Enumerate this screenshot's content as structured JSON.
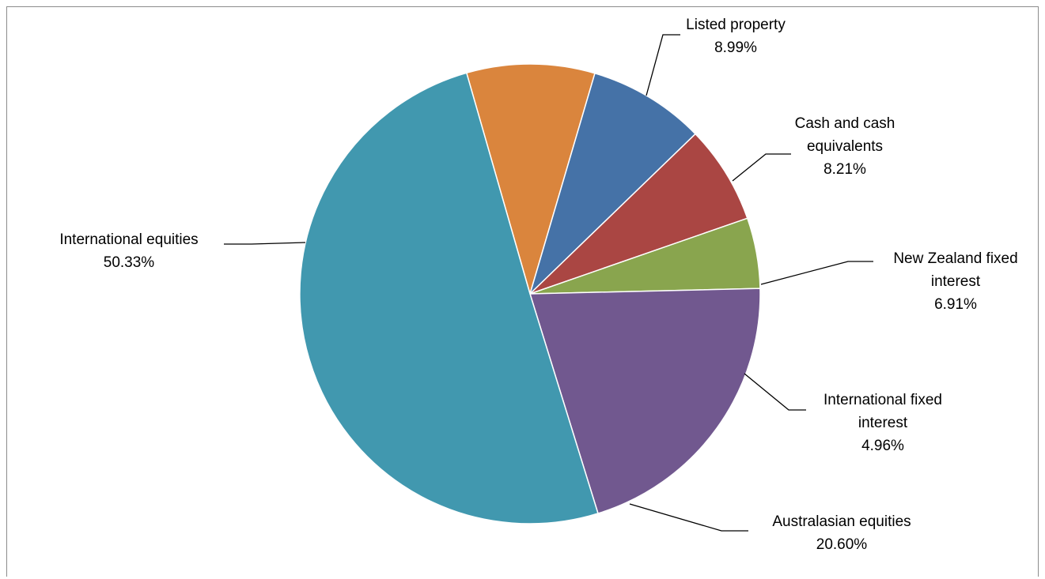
{
  "chart_data": {
    "type": "pie",
    "title": "",
    "start_angle_deg": 344,
    "direction": "clockwise",
    "legend": "none",
    "slices": [
      {
        "label": "Listed property",
        "value": 8.99,
        "display": "8.99%",
        "color": "#DA853D"
      },
      {
        "label": "Cash and cash equivalents",
        "value": 8.21,
        "display": "8.21%",
        "color": "#4572A7"
      },
      {
        "label": "New Zealand fixed interest",
        "value": 6.91,
        "display": "6.91%",
        "color": "#AA4643"
      },
      {
        "label": "International fixed interest",
        "value": 4.96,
        "display": "4.96%",
        "color": "#89A54E"
      },
      {
        "label": "Australasian equities",
        "value": 20.6,
        "display": "20.60%",
        "color": "#71588F"
      },
      {
        "label": "International equities",
        "value": 50.33,
        "display": "50.33%",
        "color": "#4198AF"
      }
    ]
  }
}
